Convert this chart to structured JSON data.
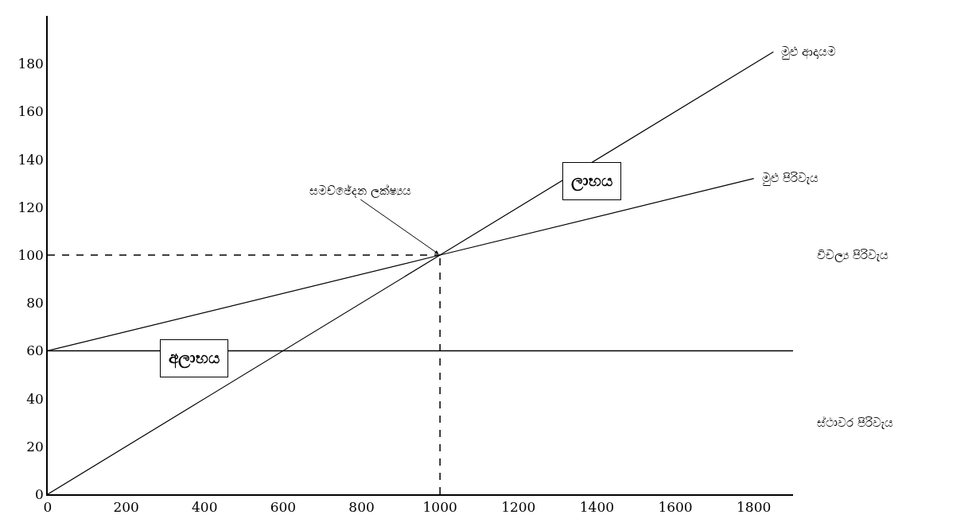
{
  "chart_data": {
    "type": "line",
    "series": [
      {
        "color": "#000000",
        "x": [
          0,
          1000,
          1850
        ],
        "values": [
          0,
          100,
          185
        ]
      },
      {
        "color": "#000000",
        "x": [
          0,
          1000,
          1800
        ],
        "values": [
          60,
          100,
          132
        ]
      }
    ],
    "xlim": [
      0,
      1900
    ],
    "ylim": [
      0,
      200
    ],
    "xticks": [
      0,
      200,
      400,
      600,
      800,
      1000,
      1200,
      1400,
      1600,
      1800
    ],
    "yticks": [
      0,
      20,
      40,
      60,
      80,
      100,
      120,
      140,
      160,
      180
    ],
    "grid": false,
    "marker": "none",
    "line_style": "solid",
    "ref_lines": [
      {
        "axis": "y",
        "value": 60,
        "label": null,
        "color": "#000000",
        "line_style": "solid"
      },
      {
        "axis": "x",
        "value": 1000,
        "label": null,
        "color": "#000000",
        "line_style": "dashed"
      },
      {
        "axis": "y",
        "value": 100,
        "label": null,
        "color": "#000000",
        "line_style": "dashed"
      }
    ],
    "annotations": [
      {
        "text": "මුළු ආදායම",
        "x": 1850,
        "y": 185
      },
      {
        "text": "මුළු පිරිවැය",
        "x": 1800,
        "y": 132
      },
      {
        "text": "සමච්ඡේදන ලක්ෂ්‍යය",
        "x": 1000,
        "y": 100
      },
      "ලාභය",
      "අලාභය",
      "විචල්‍ය පිරිවැය",
      "ස්ථාවර පිරිවැය"
    ]
  }
}
